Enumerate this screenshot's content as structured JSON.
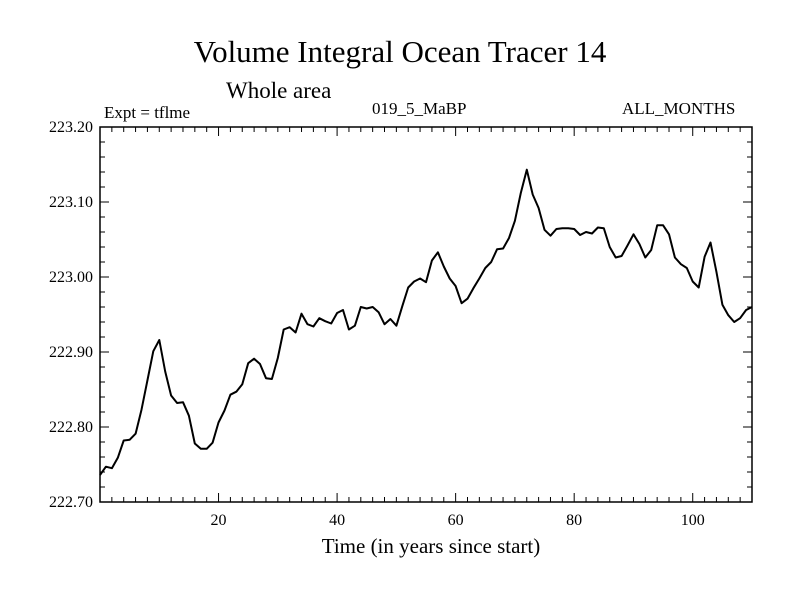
{
  "chart_data": {
    "type": "line",
    "title": "Volume Integral Ocean Tracer 14",
    "subtitle": "Whole area",
    "annotations": {
      "left": "Expt = tflme",
      "center": "019_5_MaBP",
      "right": "ALL_MONTHS"
    },
    "xlabel": "Time (in years since start)",
    "ylabel": "",
    "xlim": [
      0,
      110
    ],
    "ylim": [
      222.7,
      223.2
    ],
    "x_ticks": [
      20,
      40,
      60,
      80,
      100
    ],
    "y_ticks": [
      222.7,
      222.8,
      222.9,
      223.0,
      223.1,
      223.2
    ],
    "y_tick_labels": [
      "222.70",
      "222.80",
      "222.90",
      "223.00",
      "223.10",
      "223.20"
    ],
    "grid": false,
    "series": [
      {
        "name": "Tracer 14",
        "color": "#000000",
        "x": [
          0,
          1,
          2,
          3,
          4,
          5,
          6,
          7,
          8,
          9,
          10,
          11,
          12,
          13,
          14,
          15,
          16,
          17,
          18,
          19,
          20,
          21,
          22,
          23,
          24,
          25,
          26,
          27,
          28,
          29,
          30,
          31,
          32,
          33,
          34,
          35,
          36,
          37,
          38,
          39,
          40,
          41,
          42,
          43,
          44,
          45,
          46,
          47,
          48,
          49,
          50,
          51,
          52,
          53,
          54,
          55,
          56,
          57,
          58,
          59,
          60,
          61,
          62,
          63,
          64,
          65,
          66,
          67,
          68,
          69,
          70,
          71,
          72,
          73,
          74,
          75,
          76,
          77,
          78,
          79,
          80,
          81,
          82,
          83,
          84,
          85,
          86,
          87,
          88,
          89,
          90,
          91,
          92,
          93,
          94,
          95,
          96,
          97,
          98,
          99,
          100,
          101,
          102,
          103,
          104,
          105,
          106,
          107,
          108,
          109,
          110
        ],
        "values": [
          222.736,
          222.747,
          222.745,
          222.759,
          222.782,
          222.783,
          222.791,
          222.823,
          222.862,
          222.901,
          222.916,
          222.874,
          222.842,
          222.832,
          222.833,
          222.815,
          222.778,
          222.771,
          222.771,
          222.779,
          222.806,
          222.822,
          222.843,
          222.847,
          222.857,
          222.885,
          222.891,
          222.884,
          222.865,
          222.864,
          222.892,
          222.93,
          222.933,
          222.926,
          222.951,
          222.937,
          222.934,
          222.945,
          222.941,
          222.938,
          222.952,
          222.956,
          222.93,
          222.935,
          222.96,
          222.958,
          222.96,
          222.953,
          222.937,
          222.944,
          222.935,
          222.961,
          222.986,
          222.994,
          222.998,
          222.993,
          223.022,
          223.033,
          223.014,
          222.998,
          222.988,
          222.965,
          222.971,
          222.985,
          222.998,
          223.012,
          223.02,
          223.037,
          223.038,
          223.052,
          223.075,
          223.112,
          223.143,
          223.11,
          223.092,
          223.063,
          223.055,
          223.064,
          223.065,
          223.065,
          223.064,
          223.056,
          223.06,
          223.058,
          223.066,
          223.065,
          223.04,
          223.026,
          223.028,
          223.042,
          223.057,
          223.044,
          223.026,
          223.036,
          223.069,
          223.069,
          223.057,
          223.026,
          223.017,
          223.012,
          222.994,
          222.986,
          223.027,
          223.046,
          223.007,
          222.963,
          222.949,
          222.94,
          222.945,
          222.956,
          222.96
        ]
      }
    ]
  }
}
